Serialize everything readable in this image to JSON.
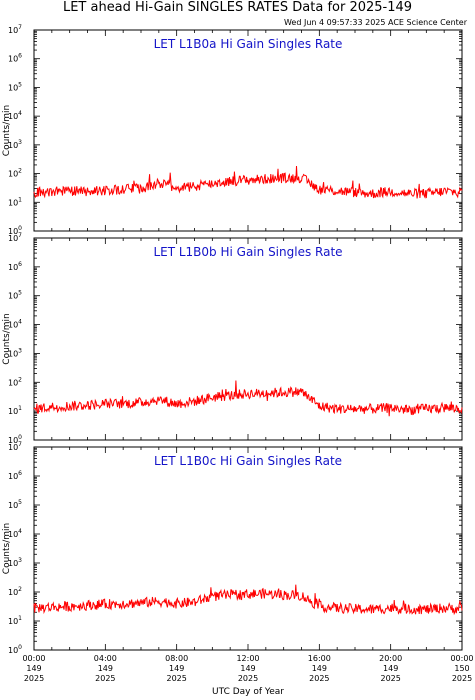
{
  "header": {
    "title": "LET ahead Hi-Gain SINGLES RATES Data for 2025-149",
    "timestamp": "Wed Jun  4 09:57:33 2025 ACE Science Center"
  },
  "colors": {
    "series": "#ff0000",
    "panel_title": "#1414c8",
    "axes": "#000000"
  },
  "chart_data": [
    {
      "type": "line",
      "title": "LET L1B0a Hi Gain Singles Rate",
      "ylabel": "Counts/min",
      "yscale": "log",
      "ylim": [
        1,
        10000000
      ],
      "xlim": [
        0,
        24
      ],
      "x_unit": "hours UTC, day 149",
      "y_tick_labels": [
        {
          "base": "10",
          "exp": "0"
        },
        {
          "base": "10",
          "exp": "1"
        },
        {
          "base": "10",
          "exp": "2"
        },
        {
          "base": "10",
          "exp": "3"
        },
        {
          "base": "10",
          "exp": "4"
        },
        {
          "base": "10",
          "exp": "5"
        },
        {
          "base": "10",
          "exp": "6"
        },
        {
          "base": "10",
          "exp": "7"
        }
      ],
      "series": [
        {
          "x": [
            0,
            1,
            2,
            3,
            4,
            5,
            6,
            7,
            8,
            9,
            10,
            11,
            12,
            13,
            14,
            15,
            16,
            17,
            18,
            19,
            20,
            21,
            22,
            23,
            24
          ],
          "values": [
            22,
            24,
            25,
            24,
            26,
            28,
            30,
            45,
            32,
            35,
            45,
            55,
            60,
            65,
            70,
            72,
            28,
            25,
            22,
            20,
            24,
            20,
            20,
            24,
            22
          ]
        }
      ]
    },
    {
      "type": "line",
      "title": "LET L1B0b Hi Gain Singles Rate",
      "ylabel": "Counts/min",
      "yscale": "log",
      "ylim": [
        1,
        10000000
      ],
      "xlim": [
        0,
        24
      ],
      "x_unit": "hours UTC, day 149",
      "y_tick_labels": [
        {
          "base": "10",
          "exp": "0"
        },
        {
          "base": "10",
          "exp": "1"
        },
        {
          "base": "10",
          "exp": "2"
        },
        {
          "base": "10",
          "exp": "3"
        },
        {
          "base": "10",
          "exp": "4"
        },
        {
          "base": "10",
          "exp": "5"
        },
        {
          "base": "10",
          "exp": "6"
        },
        {
          "base": "10",
          "exp": "7"
        }
      ],
      "series": [
        {
          "x": [
            0,
            1,
            2,
            3,
            4,
            5,
            6,
            7,
            8,
            9,
            10,
            11,
            12,
            13,
            14,
            15,
            16,
            17,
            18,
            19,
            20,
            21,
            22,
            23,
            24
          ],
          "values": [
            12,
            14,
            15,
            16,
            18,
            18,
            20,
            25,
            18,
            22,
            30,
            35,
            40,
            42,
            45,
            48,
            15,
            12,
            12,
            12,
            13,
            11,
            12,
            13,
            12
          ]
        }
      ]
    },
    {
      "type": "line",
      "title": "LET L1B0c Hi Gain Singles Rate",
      "ylabel": "Counts/min",
      "yscale": "log",
      "ylim": [
        1,
        10000000
      ],
      "xlim": [
        0,
        24
      ],
      "x_unit": "hours UTC, day 149",
      "y_tick_labels": [
        {
          "base": "10",
          "exp": "0"
        },
        {
          "base": "10",
          "exp": "1"
        },
        {
          "base": "10",
          "exp": "2"
        },
        {
          "base": "10",
          "exp": "3"
        },
        {
          "base": "10",
          "exp": "4"
        },
        {
          "base": "10",
          "exp": "5"
        },
        {
          "base": "10",
          "exp": "6"
        },
        {
          "base": "10",
          "exp": "7"
        }
      ],
      "series": [
        {
          "x": [
            0,
            1,
            2,
            3,
            4,
            5,
            6,
            7,
            8,
            9,
            10,
            11,
            12,
            13,
            14,
            15,
            16,
            17,
            18,
            19,
            20,
            21,
            22,
            23,
            24
          ],
          "values": [
            28,
            30,
            32,
            35,
            38,
            40,
            42,
            48,
            40,
            45,
            70,
            80,
            85,
            88,
            80,
            75,
            32,
            28,
            26,
            25,
            28,
            26,
            25,
            28,
            26
          ]
        }
      ]
    }
  ],
  "x_axis": {
    "label": "UTC Day of Year",
    "ticks": [
      {
        "x": 0,
        "time": "00:00",
        "day": "149",
        "year": "2025"
      },
      {
        "x": 4,
        "time": "04:00",
        "day": "149",
        "year": "2025"
      },
      {
        "x": 8,
        "time": "08:00",
        "day": "149",
        "year": "2025"
      },
      {
        "x": 12,
        "time": "12:00",
        "day": "149",
        "year": "2025"
      },
      {
        "x": 16,
        "time": "16:00",
        "day": "149",
        "year": "2025"
      },
      {
        "x": 20,
        "time": "20:00",
        "day": "149",
        "year": "2025"
      },
      {
        "x": 24,
        "time": "00:00",
        "day": "150",
        "year": "2025"
      }
    ]
  }
}
